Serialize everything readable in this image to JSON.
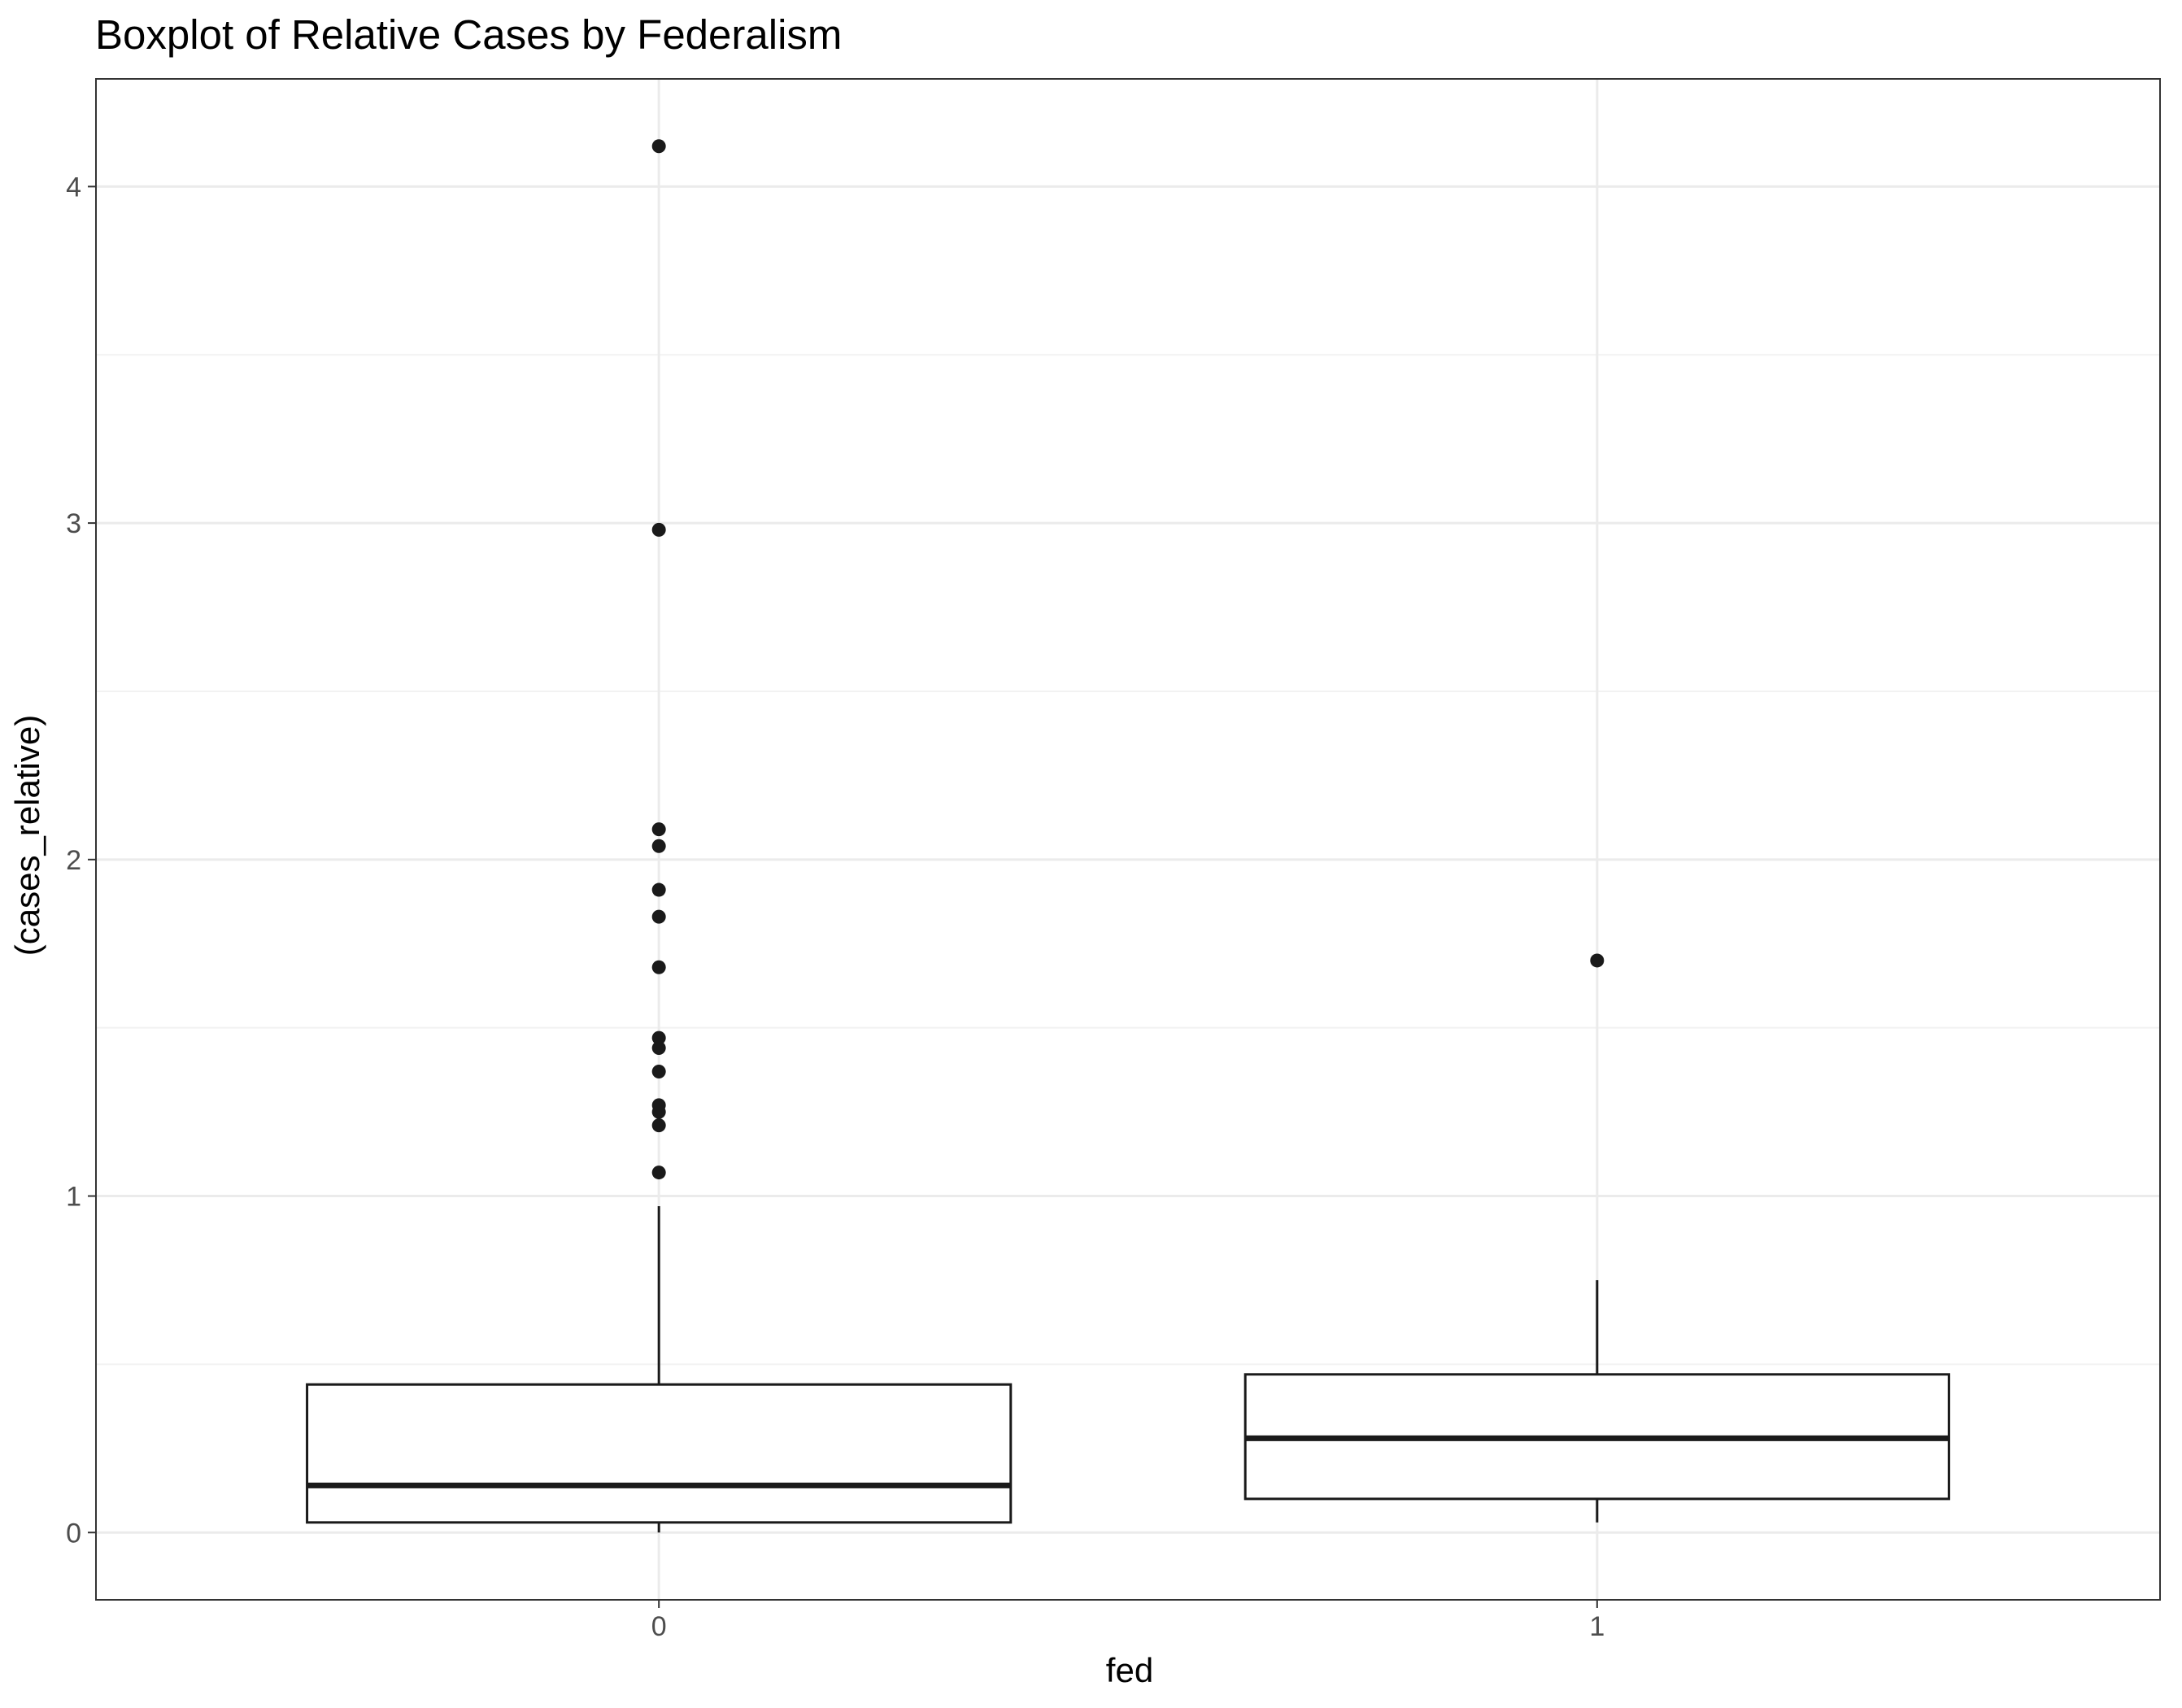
{
  "chart_data": {
    "type": "boxplot",
    "title": "Boxplot of Relative Cases by Federalism",
    "xlabel": "fed",
    "ylabel": "(cases_relative)",
    "categories": [
      "0",
      "1"
    ],
    "ylim": [
      -0.2,
      4.32
    ],
    "yticks": [
      0,
      1,
      2,
      3,
      4
    ],
    "ytick_labels": [
      "0",
      "1",
      "2",
      "3",
      "4"
    ],
    "grid": true,
    "legend": "none",
    "boxes": [
      {
        "category": "0",
        "whisker_low": 0.0,
        "q1": 0.03,
        "median": 0.14,
        "q3": 0.44,
        "whisker_high": 0.97,
        "outliers": [
          1.07,
          1.21,
          1.25,
          1.27,
          1.37,
          1.44,
          1.47,
          1.68,
          1.83,
          1.91,
          2.04,
          2.09,
          2.98,
          4.12
        ]
      },
      {
        "category": "1",
        "whisker_low": 0.03,
        "q1": 0.1,
        "median": 0.28,
        "q3": 0.47,
        "whisker_high": 0.75,
        "outliers": [
          1.7
        ]
      }
    ],
    "colors": {
      "box_stroke": "#1a1a1a",
      "box_fill": "#ffffff",
      "outlier": "#1a1a1a",
      "grid_major": "#ebebeb",
      "grid_minor": "#f2f2f2",
      "panel_border": "#333333",
      "tick_label": "#4d4d4d"
    }
  }
}
